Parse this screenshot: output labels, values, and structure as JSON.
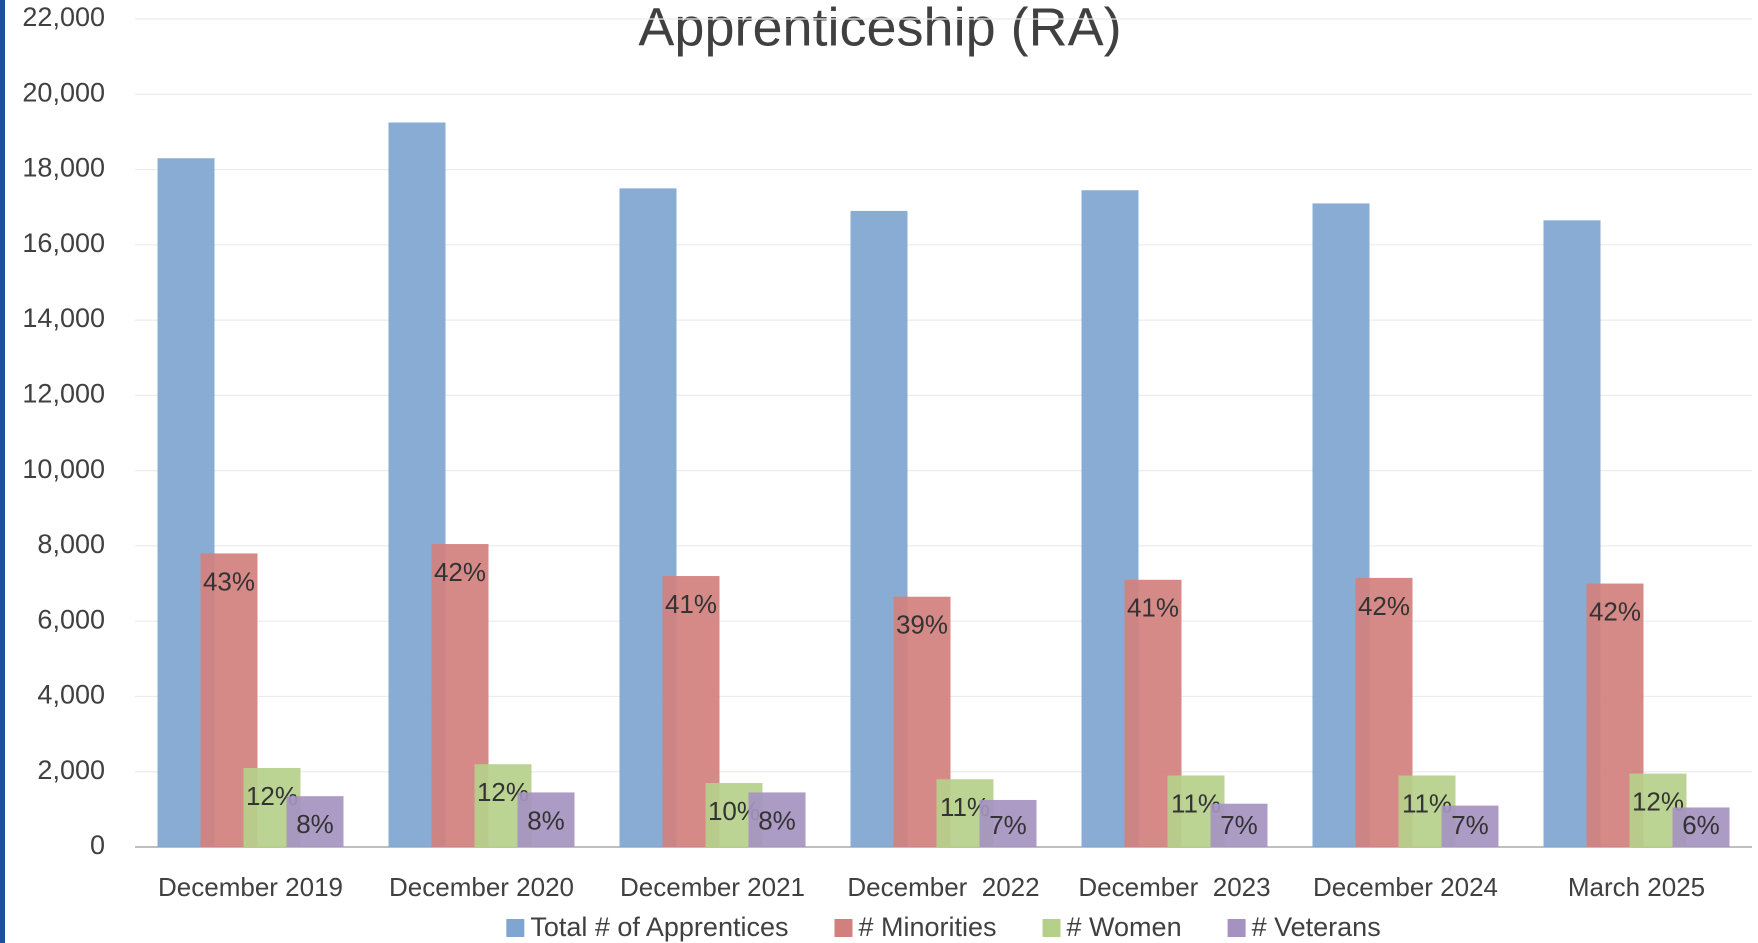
{
  "chart_data": {
    "type": "bar",
    "title": "Apprenticeship (RA)",
    "categories": [
      "December 2019",
      "December 2020",
      "December 2021",
      "December  2022",
      "December  2023",
      "December 2024",
      "March 2025"
    ],
    "series": [
      {
        "name": "Total # of Apprentices",
        "color": "#7fa5d1",
        "values": [
          18300,
          19250,
          17500,
          16900,
          17450,
          17100,
          16650
        ]
      },
      {
        "name": "# Minorities",
        "color": "#d2807e",
        "values": [
          7800,
          8050,
          7200,
          6650,
          7100,
          7150,
          7000
        ],
        "labels": [
          "43%",
          "42%",
          "41%",
          "39%",
          "41%",
          "42%",
          "42%"
        ]
      },
      {
        "name": "# Women",
        "color": "#b6d08a",
        "values": [
          2100,
          2200,
          1700,
          1800,
          1900,
          1900,
          1950
        ],
        "labels": [
          "12%",
          "12%",
          "10%",
          "11%",
          "11%",
          "11%",
          "12%"
        ]
      },
      {
        "name": "# Veterans",
        "color": "#a592c0",
        "values": [
          1350,
          1450,
          1450,
          1250,
          1150,
          1100,
          1050
        ],
        "labels": [
          "8%",
          "8%",
          "8%",
          "7%",
          "7%",
          "7%",
          "6%"
        ]
      }
    ],
    "ylim": [
      0,
      22000
    ],
    "yticks": [
      0,
      {
        "value": 2000,
        "label": "2,000"
      },
      {
        "value": 4000,
        "label": "4,000"
      },
      {
        "value": 6000,
        "label": "6,000"
      },
      {
        "value": 8000,
        "label": "8,000"
      },
      {
        "value": 10000,
        "label": "10,000"
      },
      {
        "value": 12000,
        "label": "12,000"
      },
      {
        "value": 14000,
        "label": "14,000"
      },
      {
        "value": 16000,
        "label": "16,000"
      },
      {
        "value": 18000,
        "label": "18,000"
      },
      {
        "value": 20000,
        "label": "20,000"
      },
      {
        "value": 22000,
        "label": "22,000"
      }
    ],
    "grid": true,
    "legend": "bottom"
  }
}
